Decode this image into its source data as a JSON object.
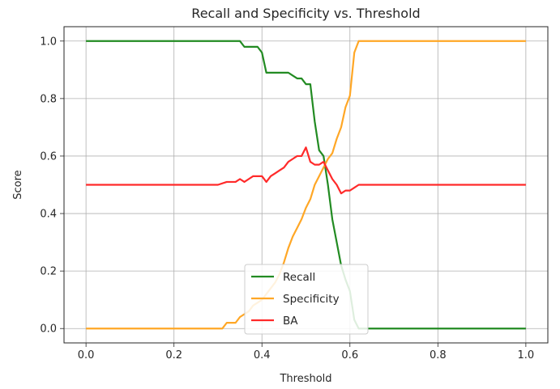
{
  "chart_data": {
    "type": "line",
    "title": "Recall and Specificity vs. Threshold",
    "xlabel": "Threshold",
    "ylabel": "Score",
    "xlim": [
      -0.05,
      1.05
    ],
    "ylim": [
      -0.05,
      1.05
    ],
    "xticks": [
      0.0,
      0.2,
      0.4,
      0.6,
      0.8,
      1.0
    ],
    "xtick_labels": [
      "0.0",
      "0.2",
      "0.4",
      "0.6",
      "0.8",
      "1.0"
    ],
    "yticks": [
      0.0,
      0.2,
      0.4,
      0.6,
      0.8,
      1.0
    ],
    "ytick_labels": [
      "0.0",
      "0.2",
      "0.4",
      "0.6",
      "0.8",
      "1.0"
    ],
    "grid": true,
    "legend_position": "bottom-center",
    "series": [
      {
        "name": "Recall",
        "color": "#228B22",
        "x": [
          0.0,
          0.35,
          0.36,
          0.39,
          0.4,
          0.41,
          0.46,
          0.47,
          0.48,
          0.49,
          0.5,
          0.51,
          0.52,
          0.53,
          0.54,
          0.55,
          0.56,
          0.57,
          0.58,
          0.59,
          0.6,
          0.61,
          0.62,
          0.63,
          1.0
        ],
        "y": [
          1.0,
          1.0,
          0.98,
          0.98,
          0.96,
          0.89,
          0.89,
          0.88,
          0.87,
          0.87,
          0.85,
          0.85,
          0.72,
          0.62,
          0.6,
          0.5,
          0.38,
          0.3,
          0.22,
          0.17,
          0.13,
          0.03,
          0.0,
          0.0,
          0.0
        ]
      },
      {
        "name": "Specificity",
        "color": "#FFA726",
        "x": [
          0.0,
          0.31,
          0.32,
          0.34,
          0.35,
          0.37,
          0.38,
          0.4,
          0.41,
          0.42,
          0.43,
          0.44,
          0.45,
          0.46,
          0.47,
          0.48,
          0.49,
          0.5,
          0.51,
          0.52,
          0.53,
          0.54,
          0.55,
          0.56,
          0.57,
          0.58,
          0.59,
          0.6,
          0.61,
          0.62,
          1.0
        ],
        "y": [
          0.0,
          0.0,
          0.02,
          0.02,
          0.04,
          0.06,
          0.08,
          0.1,
          0.12,
          0.14,
          0.16,
          0.19,
          0.23,
          0.28,
          0.32,
          0.35,
          0.38,
          0.42,
          0.45,
          0.5,
          0.53,
          0.56,
          0.59,
          0.61,
          0.66,
          0.7,
          0.77,
          0.81,
          0.96,
          1.0,
          1.0
        ]
      },
      {
        "name": "BA",
        "color": "#FF2A2A",
        "x": [
          0.0,
          0.3,
          0.32,
          0.34,
          0.35,
          0.36,
          0.37,
          0.38,
          0.39,
          0.4,
          0.41,
          0.42,
          0.43,
          0.44,
          0.45,
          0.46,
          0.47,
          0.48,
          0.49,
          0.5,
          0.51,
          0.52,
          0.53,
          0.54,
          0.55,
          0.56,
          0.57,
          0.58,
          0.59,
          0.6,
          0.61,
          0.62,
          1.0
        ],
        "y": [
          0.5,
          0.5,
          0.51,
          0.51,
          0.52,
          0.51,
          0.52,
          0.53,
          0.53,
          0.53,
          0.51,
          0.53,
          0.54,
          0.55,
          0.56,
          0.58,
          0.59,
          0.6,
          0.6,
          0.63,
          0.58,
          0.57,
          0.57,
          0.58,
          0.55,
          0.52,
          0.5,
          0.47,
          0.48,
          0.48,
          0.49,
          0.5,
          0.5
        ]
      }
    ]
  }
}
